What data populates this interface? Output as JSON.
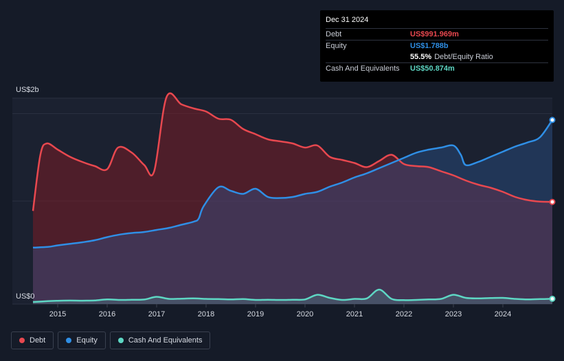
{
  "chart_data": {
    "type": "area",
    "title": "",
    "xlabel": "",
    "ylabel": "",
    "y_top_label": "US$2b",
    "y_bottom_label": "US$0",
    "ylim": [
      0,
      2000
    ],
    "xlim": [
      2014.5,
      2025.0
    ],
    "x_ticks": [
      "2015",
      "2016",
      "2017",
      "2018",
      "2019",
      "2020",
      "2021",
      "2022",
      "2023",
      "2024"
    ],
    "grid": true,
    "legend_position": "bottom-left",
    "units": "US$ millions",
    "series": [
      {
        "name": "Debt",
        "color": "#e8484f",
        "x": [
          2014.5,
          2014.65,
          2014.78,
          2015.0,
          2015.25,
          2015.5,
          2015.75,
          2016.0,
          2016.22,
          2016.5,
          2016.75,
          2016.95,
          2017.2,
          2017.5,
          2017.75,
          2018.0,
          2018.25,
          2018.5,
          2018.75,
          2019.0,
          2019.25,
          2019.5,
          2019.75,
          2020.0,
          2020.25,
          2020.5,
          2020.75,
          2021.0,
          2021.25,
          2021.5,
          2021.75,
          2022.0,
          2022.25,
          2022.5,
          2022.75,
          2023.0,
          2023.25,
          2023.5,
          2023.75,
          2024.0,
          2024.25,
          2024.5,
          2024.75,
          2025.0
        ],
        "values": [
          905,
          1450,
          1560,
          1500,
          1430,
          1380,
          1340,
          1310,
          1520,
          1470,
          1350,
          1290,
          2010,
          1940,
          1900,
          1870,
          1800,
          1790,
          1700,
          1650,
          1600,
          1580,
          1560,
          1520,
          1540,
          1430,
          1400,
          1370,
          1330,
          1390,
          1450,
          1360,
          1340,
          1330,
          1290,
          1250,
          1200,
          1160,
          1130,
          1090,
          1040,
          1010,
          995,
          992
        ]
      },
      {
        "name": "Equity",
        "color": "#2f8fe6",
        "x": [
          2014.5,
          2014.8,
          2015.0,
          2015.25,
          2015.5,
          2015.75,
          2016.0,
          2016.25,
          2016.5,
          2016.75,
          2017.0,
          2017.25,
          2017.5,
          2017.75,
          2017.85,
          2017.95,
          2018.25,
          2018.5,
          2018.75,
          2019.0,
          2019.25,
          2019.5,
          2019.75,
          2020.0,
          2020.25,
          2020.5,
          2020.75,
          2021.0,
          2021.25,
          2021.5,
          2021.75,
          2022.0,
          2022.25,
          2022.5,
          2022.75,
          2023.0,
          2023.15,
          2023.25,
          2023.5,
          2023.75,
          2024.0,
          2024.25,
          2024.5,
          2024.75,
          2025.0
        ],
        "values": [
          548,
          555,
          570,
          585,
          600,
          620,
          650,
          675,
          690,
          700,
          720,
          740,
          770,
          800,
          830,
          950,
          1135,
          1100,
          1070,
          1120,
          1040,
          1030,
          1040,
          1070,
          1090,
          1140,
          1180,
          1230,
          1270,
          1320,
          1370,
          1420,
          1470,
          1500,
          1520,
          1540,
          1450,
          1350,
          1380,
          1430,
          1480,
          1530,
          1570,
          1620,
          1788
        ]
      },
      {
        "name": "Cash And Equivalents",
        "color": "#5ed7c4",
        "x": [
          2014.5,
          2014.8,
          2015.0,
          2015.25,
          2015.5,
          2015.75,
          2016.0,
          2016.25,
          2016.5,
          2016.75,
          2017.0,
          2017.25,
          2017.5,
          2017.75,
          2018.0,
          2018.25,
          2018.5,
          2018.75,
          2019.0,
          2019.25,
          2019.5,
          2019.75,
          2020.0,
          2020.25,
          2020.5,
          2020.75,
          2021.0,
          2021.25,
          2021.5,
          2021.75,
          2022.0,
          2022.25,
          2022.5,
          2022.75,
          2023.0,
          2023.25,
          2023.5,
          2023.75,
          2024.0,
          2024.25,
          2024.5,
          2024.75,
          2025.0
        ],
        "values": [
          20,
          28,
          32,
          34,
          33,
          35,
          45,
          40,
          42,
          44,
          70,
          50,
          52,
          55,
          50,
          48,
          45,
          48,
          40,
          42,
          40,
          42,
          45,
          90,
          60,
          40,
          50,
          55,
          140,
          50,
          38,
          40,
          45,
          50,
          90,
          60,
          55,
          58,
          60,
          50,
          45,
          48,
          51
        ]
      }
    ],
    "end_markers": [
      {
        "series": "Debt",
        "value": 991.969
      },
      {
        "series": "Equity",
        "value": 1788
      },
      {
        "series": "Cash And Equivalents",
        "value": 50.874
      }
    ]
  },
  "tooltip": {
    "date": "Dec 31 2024",
    "rows": [
      {
        "label": "Debt",
        "value": "US$991.969m",
        "color": "#e8484f"
      },
      {
        "label": "Equity",
        "value": "US$1.788b",
        "color": "#2f8fe6"
      },
      {
        "label": "",
        "ratio_value": "55.5%",
        "ratio_text": "Debt/Equity Ratio"
      },
      {
        "label": "Cash And Equivalents",
        "value": "US$50.874m",
        "color": "#5ed7c4"
      }
    ]
  },
  "legend": {
    "items": [
      {
        "label": "Debt",
        "color": "#e8484f"
      },
      {
        "label": "Equity",
        "color": "#2f8fe6"
      },
      {
        "label": "Cash And Equivalents",
        "color": "#5ed7c4"
      }
    ]
  },
  "colors": {
    "background": "#151b28",
    "plot_background": "#1b2130",
    "grid": "#2a3040",
    "text": "#d7dbe3"
  }
}
